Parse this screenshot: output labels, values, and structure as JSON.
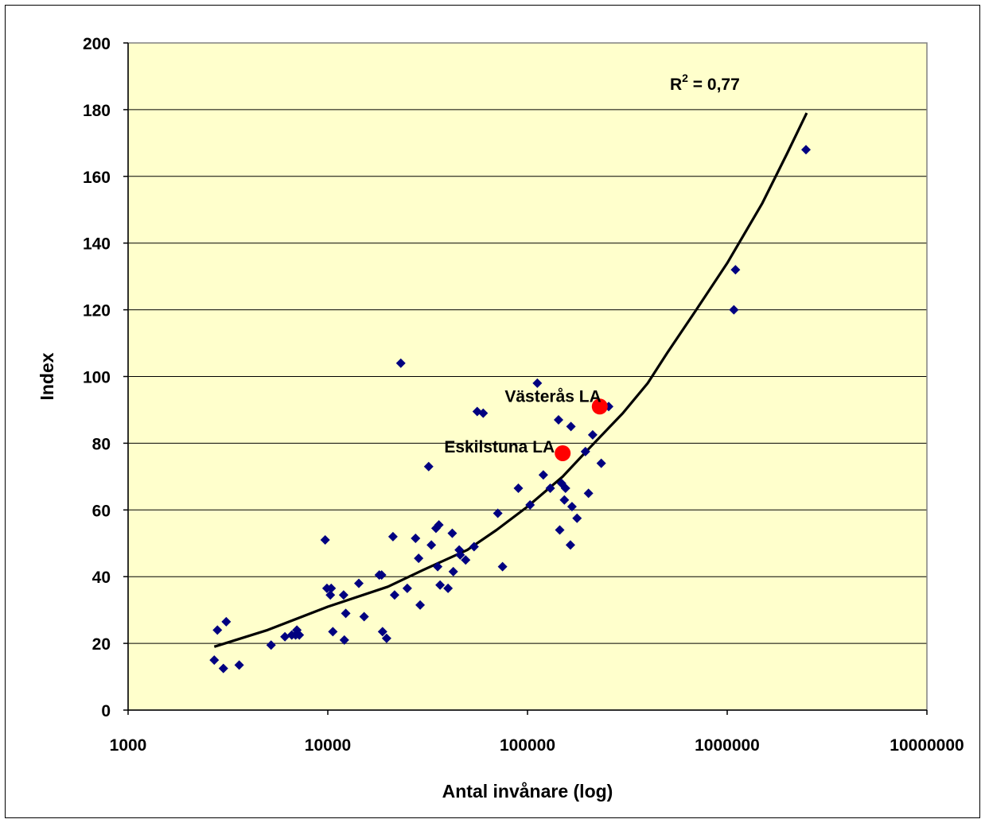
{
  "chart_data": {
    "type": "scatter",
    "title": "",
    "xlabel": "Antal invånare (log)",
    "ylabel": "Index",
    "xscale": "log",
    "xlim": [
      1000,
      10000000
    ],
    "ylim": [
      0,
      200
    ],
    "x_ticks": [
      1000,
      10000,
      100000,
      1000000,
      10000000
    ],
    "x_tick_labels": [
      "1000",
      "10000",
      "100000",
      "1000000",
      "10000000"
    ],
    "y_ticks": [
      0,
      20,
      40,
      60,
      80,
      100,
      120,
      140,
      160,
      180,
      200
    ],
    "y_tick_labels": [
      "0",
      "20",
      "40",
      "60",
      "80",
      "100",
      "120",
      "140",
      "160",
      "180",
      "200"
    ],
    "grid": "horizontal",
    "plot_background": "#ffffcc",
    "legend": "none",
    "series": [
      {
        "marker": "diamond",
        "color": "#000080",
        "points": [
          [
            2700,
            15
          ],
          [
            2800,
            24
          ],
          [
            3000,
            12.5
          ],
          [
            3100,
            26.5
          ],
          [
            3600,
            13.5
          ],
          [
            5200,
            19.5
          ],
          [
            6100,
            22
          ],
          [
            6600,
            22.5
          ],
          [
            6900,
            22.5
          ],
          [
            7000,
            24
          ],
          [
            7200,
            22.5
          ],
          [
            9700,
            51
          ],
          [
            9900,
            36.5
          ],
          [
            10300,
            34.5
          ],
          [
            10400,
            36.5
          ],
          [
            10600,
            23.5
          ],
          [
            12000,
            34.5
          ],
          [
            12100,
            21
          ],
          [
            12300,
            29
          ],
          [
            14300,
            38
          ],
          [
            15200,
            28
          ],
          [
            18100,
            40.5
          ],
          [
            18600,
            40.5
          ],
          [
            18800,
            23.5
          ],
          [
            19700,
            21.5
          ],
          [
            21200,
            52
          ],
          [
            21600,
            34.5
          ],
          [
            23200,
            104
          ],
          [
            25000,
            36.5
          ],
          [
            27500,
            51.5
          ],
          [
            28500,
            45.5
          ],
          [
            29000,
            31.5
          ],
          [
            32000,
            73
          ],
          [
            33000,
            49.5
          ],
          [
            34800,
            54.5
          ],
          [
            35500,
            43
          ],
          [
            36000,
            55.5
          ],
          [
            36500,
            37.5
          ],
          [
            40000,
            36.5
          ],
          [
            42000,
            53
          ],
          [
            42500,
            41.5
          ],
          [
            45500,
            48
          ],
          [
            46000,
            46.5
          ],
          [
            49000,
            45
          ],
          [
            54000,
            49
          ],
          [
            56000,
            89.5
          ],
          [
            60000,
            89
          ],
          [
            71000,
            59
          ],
          [
            75000,
            43
          ],
          [
            90000,
            66.5
          ],
          [
            103000,
            61.5
          ],
          [
            112000,
            98
          ],
          [
            120000,
            70.5
          ],
          [
            130000,
            66.5
          ],
          [
            143000,
            87
          ],
          [
            145000,
            54
          ],
          [
            148000,
            68
          ],
          [
            153000,
            63
          ],
          [
            155000,
            66.5
          ],
          [
            164000,
            49.5
          ],
          [
            165000,
            85
          ],
          [
            167000,
            61
          ],
          [
            177000,
            57.5
          ],
          [
            195000,
            77.5
          ],
          [
            202000,
            65
          ],
          [
            212000,
            82.5
          ],
          [
            234000,
            74
          ],
          [
            255000,
            91
          ],
          [
            1080000,
            120
          ],
          [
            1100000,
            132
          ],
          [
            2480000,
            168
          ]
        ]
      },
      {
        "name": "Västerås LA",
        "marker": "circle",
        "color": "#ff0000",
        "points": [
          [
            230000,
            91
          ]
        ]
      },
      {
        "name": "Eskilstuna LA",
        "marker": "circle",
        "color": "#ff0000",
        "points": [
          [
            150000,
            77
          ]
        ]
      }
    ],
    "trendline": {
      "color": "#000000",
      "points": [
        [
          2700,
          19
        ],
        [
          5000,
          24
        ],
        [
          10000,
          31
        ],
        [
          20000,
          37
        ],
        [
          30000,
          42
        ],
        [
          50000,
          48
        ],
        [
          70000,
          54
        ],
        [
          100000,
          61
        ],
        [
          150000,
          70
        ],
        [
          200000,
          78
        ],
        [
          300000,
          89
        ],
        [
          400000,
          98
        ],
        [
          500000,
          107
        ],
        [
          700000,
          120
        ],
        [
          1000000,
          134
        ],
        [
          1500000,
          152
        ],
        [
          2000000,
          167
        ],
        [
          2500000,
          179
        ]
      ]
    },
    "annotations": {
      "r_squared_prefix": "R",
      "r_squared_exp": "2",
      "r_squared_value": " = 0,77",
      "vasteras_label": "Västerås LA",
      "eskilstuna_label": "Eskilstuna LA"
    }
  }
}
